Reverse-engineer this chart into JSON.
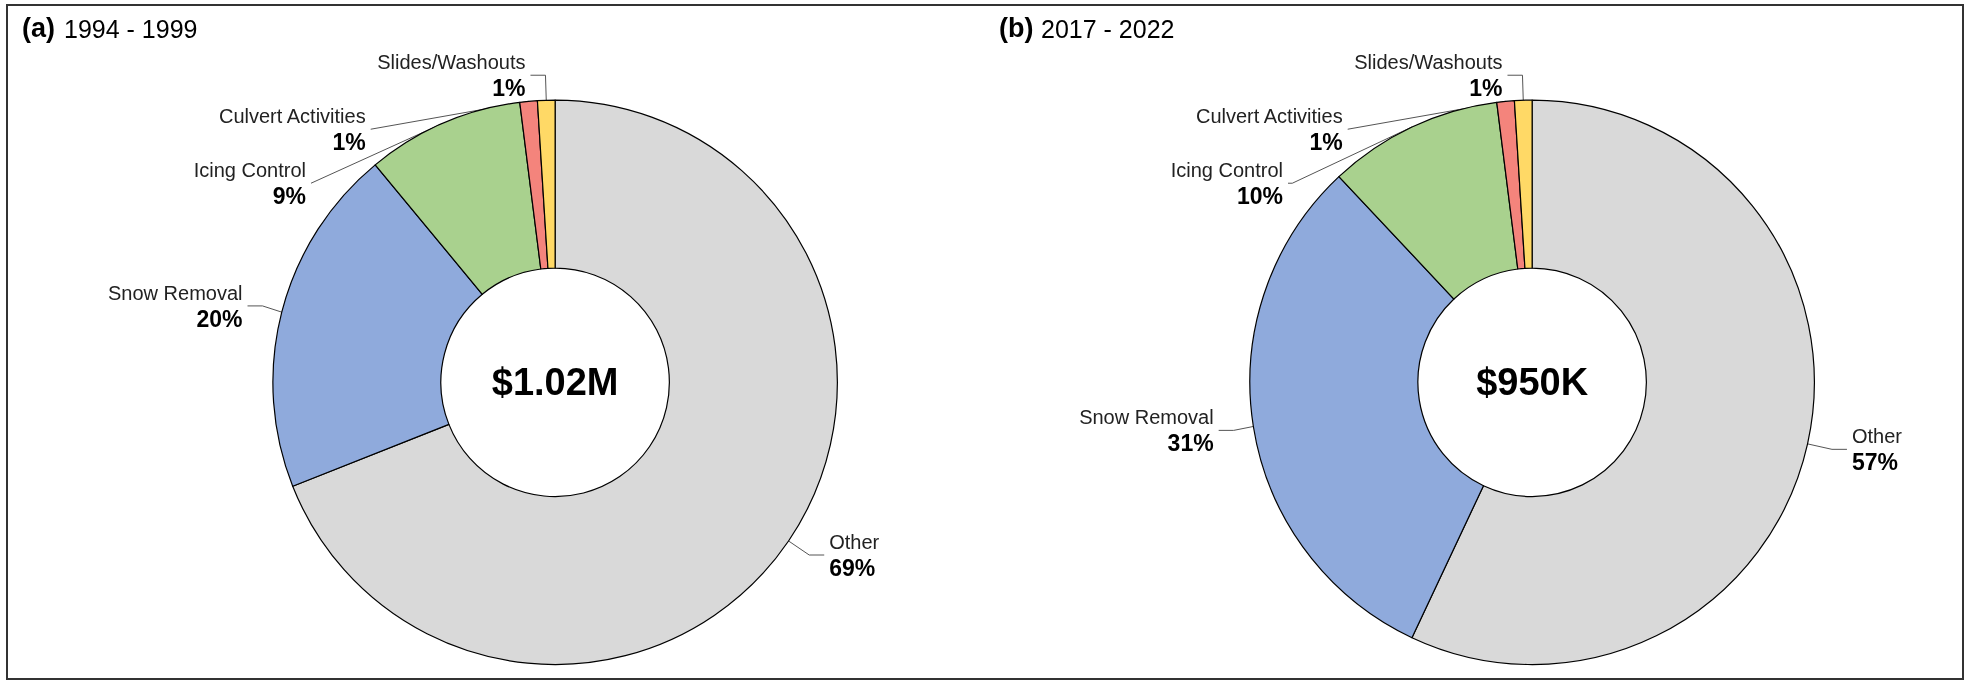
{
  "chart_data": [
    {
      "type": "donut",
      "title": "(a)",
      "subtitle": "1994 - 1999",
      "annotations": [
        "$1.02M"
      ],
      "categories": [
        "Other",
        "Snow Removal",
        "Icing Control",
        "Culvert Activities",
        "Slides/Washouts"
      ],
      "values": [
        69,
        20,
        9,
        1,
        1
      ],
      "value_labels": [
        "69%",
        "20%",
        "9%",
        "1%",
        "1%"
      ],
      "colors": [
        "#d9d9d9",
        "#8faadc",
        "#a9d18e",
        "#f4847c",
        "#ffd966"
      ]
    },
    {
      "type": "donut",
      "title": "(b)",
      "subtitle": "2017 - 2022",
      "annotations": [
        "$950K"
      ],
      "categories": [
        "Other",
        "Snow Removal",
        "Icing Control",
        "Culvert Activities",
        "Slides/Washouts"
      ],
      "values": [
        57,
        31,
        10,
        1,
        1
      ],
      "value_labels": [
        "57%",
        "31%",
        "10%",
        "1%",
        "1%"
      ],
      "colors": [
        "#d9d9d9",
        "#8faadc",
        "#a9d18e",
        "#f4847c",
        "#ffd966"
      ]
    }
  ]
}
